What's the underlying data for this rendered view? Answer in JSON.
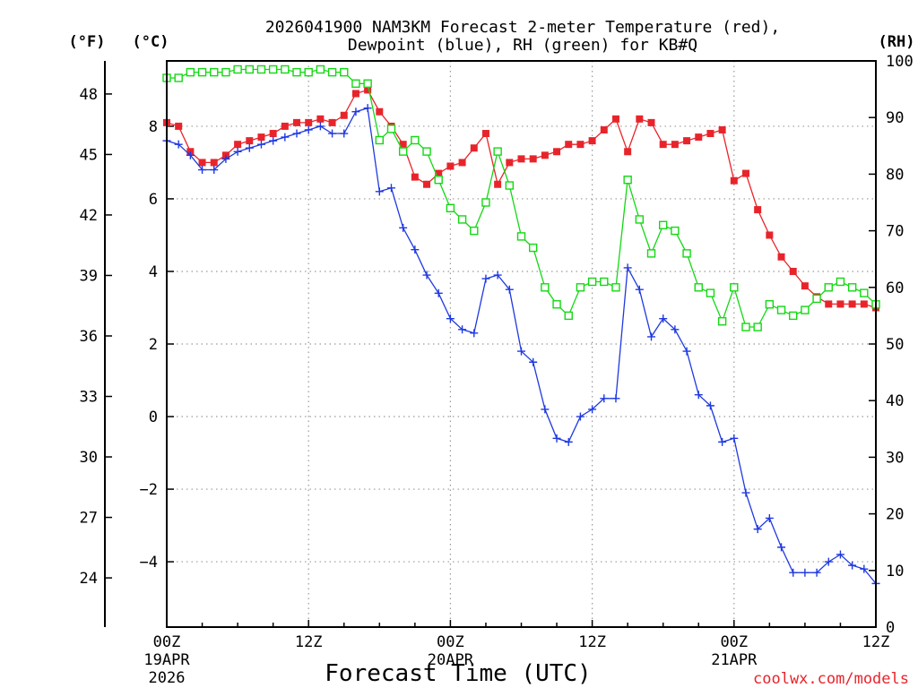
{
  "chart_data": {
    "type": "line",
    "title_line1": "2026041900 NAM3KM Forecast 2-meter Temperature (red),",
    "title_line2": "Dewpoint (blue), RH (green) for KB#Q",
    "xlabel": "Forecast Time (UTC)",
    "credit": "coolwx.com/models",
    "left_f_label": "(°F)",
    "left_c_label": "(°C)",
    "right_label": "(RH)",
    "x_unit": "hours since 00Z 19APR 2026",
    "xlim": [
      0,
      60
    ],
    "ylim_c": [
      -5.8,
      9.8
    ],
    "ylim_rh": [
      0,
      100
    ],
    "f_ticks": [
      24,
      27,
      30,
      33,
      36,
      39,
      42,
      45,
      48
    ],
    "c_ticks": [
      -4,
      -2,
      0,
      2,
      4,
      6,
      8
    ],
    "rh_ticks": [
      0,
      10,
      20,
      30,
      40,
      50,
      60,
      70,
      80,
      90,
      100
    ],
    "x_ticks": [
      {
        "hour": 0,
        "label": "00Z",
        "line2": "19APR",
        "line3": "2026"
      },
      {
        "hour": 12,
        "label": "12Z",
        "line2": "",
        "line3": ""
      },
      {
        "hour": 24,
        "label": "00Z",
        "line2": "20APR",
        "line3": ""
      },
      {
        "hour": 36,
        "label": "12Z",
        "line2": "",
        "line3": ""
      },
      {
        "hour": 48,
        "label": "00Z",
        "line2": "21APR",
        "line3": ""
      },
      {
        "hour": 60,
        "label": "12Z",
        "line2": "",
        "line3": ""
      }
    ],
    "x": [
      0,
      1,
      2,
      3,
      4,
      5,
      6,
      7,
      8,
      9,
      10,
      11,
      12,
      13,
      14,
      15,
      16,
      17,
      18,
      19,
      20,
      21,
      22,
      23,
      24,
      25,
      26,
      27,
      28,
      29,
      30,
      31,
      32,
      33,
      34,
      35,
      36,
      37,
      38,
      39,
      40,
      41,
      42,
      43,
      44,
      45,
      46,
      47,
      48,
      49,
      50,
      51,
      52,
      53,
      54,
      55,
      56,
      57,
      58,
      59,
      60
    ],
    "series": [
      {
        "name": "Temperature (°C)",
        "color": "#e8242b",
        "marker": "filled-square",
        "axis": "celsius",
        "values": [
          8.1,
          8.0,
          7.3,
          7.0,
          7.0,
          7.2,
          7.5,
          7.6,
          7.7,
          7.8,
          8.0,
          8.1,
          8.1,
          8.2,
          8.1,
          8.3,
          8.9,
          9.0,
          8.4,
          8.0,
          7.5,
          6.6,
          6.4,
          6.7,
          6.9,
          7.0,
          7.4,
          7.8,
          6.4,
          7.0,
          7.1,
          7.1,
          7.2,
          7.3,
          7.5,
          7.5,
          7.6,
          7.9,
          8.2,
          7.3,
          8.2,
          8.1,
          7.5,
          7.5,
          7.6,
          7.7,
          7.8,
          7.9,
          6.5,
          6.7,
          5.7,
          5.0,
          4.4,
          4.0,
          3.6,
          3.3,
          3.1,
          3.1,
          3.1,
          3.1,
          3.0
        ]
      },
      {
        "name": "Dewpoint (°C)",
        "color": "#1f39e0",
        "marker": "plus",
        "axis": "celsius",
        "values": [
          7.6,
          7.5,
          7.2,
          6.8,
          6.8,
          7.1,
          7.3,
          7.4,
          7.5,
          7.6,
          7.7,
          7.8,
          7.9,
          8.0,
          7.8,
          7.8,
          8.4,
          8.5,
          6.2,
          6.3,
          5.2,
          4.6,
          3.9,
          3.4,
          2.7,
          2.4,
          2.3,
          3.8,
          3.9,
          3.5,
          1.8,
          1.5,
          0.2,
          -0.6,
          -0.7,
          0.0,
          0.2,
          0.5,
          0.5,
          4.1,
          3.5,
          2.2,
          2.7,
          2.4,
          1.8,
          0.6,
          0.3,
          -0.7,
          -0.6,
          -2.1,
          -3.1,
          -2.8,
          -3.6,
          -4.3,
          -4.3,
          -4.3,
          -4.0,
          -3.8,
          -4.1,
          -4.2,
          -4.6
        ]
      },
      {
        "name": "RH (%)",
        "color": "#13d813",
        "marker": "open-square",
        "axis": "rh",
        "values": [
          97,
          97,
          98,
          98,
          98,
          98,
          98.5,
          98.5,
          98.5,
          98.5,
          98.5,
          98,
          98,
          98.5,
          98,
          98,
          96,
          96,
          86,
          88,
          84,
          86,
          84,
          79,
          74,
          72,
          70,
          75,
          84,
          78,
          69,
          67,
          60,
          57,
          55,
          60,
          61,
          61,
          60,
          79,
          72,
          66,
          71,
          70,
          66,
          60,
          59,
          54,
          60,
          53,
          53,
          57,
          56,
          55,
          56,
          58,
          60,
          61,
          60,
          59,
          57
        ]
      }
    ]
  }
}
